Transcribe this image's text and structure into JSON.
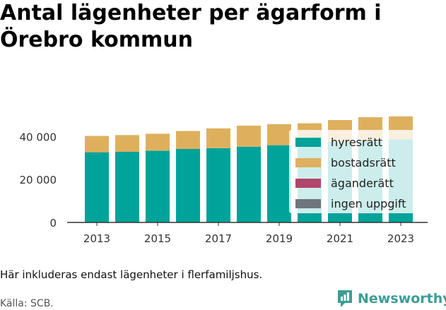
{
  "title_lines": [
    "Antal lägenheter per ägarform i",
    "Örebro kommun"
  ],
  "footnote": "Här inkluderas endast lägenheter i flerfamiljshus.",
  "source": "Källa: SCB.",
  "brand": "Newsworthy",
  "colors": {
    "hyresratt": "#00a39a",
    "bostadsratt": "#deb05e",
    "aganderatt": "#b0466c",
    "ingen_uppgift": "#6e757d",
    "axis": "#333333",
    "brand": "#3a9e95"
  },
  "chart_data": {
    "type": "bar",
    "stacked": true,
    "categories": [
      2013,
      2014,
      2015,
      2016,
      2017,
      2018,
      2019,
      2020,
      2021,
      2022,
      2023
    ],
    "x_tick_labels": [
      "2013",
      "2015",
      "2017",
      "2019",
      "2021",
      "2023"
    ],
    "ylim": [
      0,
      50000
    ],
    "y_ticks": [
      0,
      20000,
      40000
    ],
    "y_tick_labels": [
      "0",
      "20 000",
      "40 000"
    ],
    "legend_position": "right",
    "series": [
      {
        "key": "hyresratt",
        "name": "hyresrätt",
        "values": [
          32700,
          32900,
          33400,
          34200,
          34600,
          35300,
          36000,
          37000,
          37500,
          38000,
          38700
        ]
      },
      {
        "key": "bostadsratt",
        "name": "bostadsrätt",
        "values": [
          7600,
          7800,
          7900,
          8400,
          9200,
          9800,
          9800,
          9200,
          10200,
          11000,
          10700
        ]
      },
      {
        "key": "aganderatt",
        "name": "äganderätt",
        "values": [
          0,
          0,
          0,
          0,
          0,
          0,
          0,
          0,
          0,
          0,
          0
        ]
      },
      {
        "key": "ingen_uppgift",
        "name": "ingen uppgift",
        "values": [
          0,
          0,
          0,
          0,
          0,
          0,
          0,
          0,
          0,
          0,
          0
        ]
      }
    ]
  }
}
